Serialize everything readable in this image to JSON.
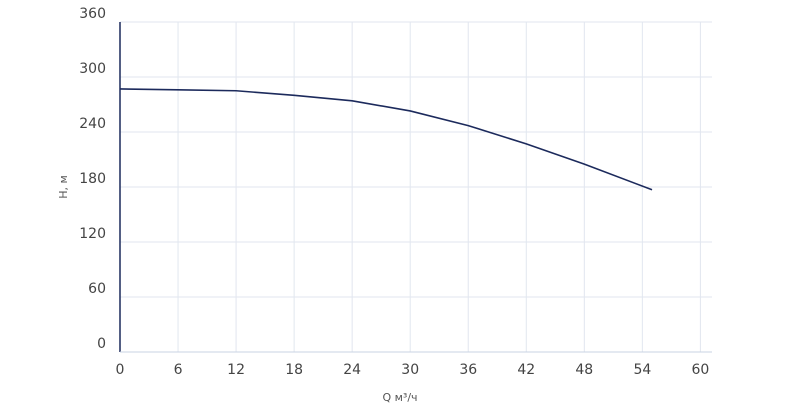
{
  "chart_data": {
    "type": "line",
    "x_label": "Q м³/ч",
    "y_label": "H, м",
    "x": [
      0,
      6,
      12,
      18,
      24,
      30,
      36,
      42,
      48,
      55
    ],
    "series": [
      {
        "name": "H",
        "color": "#1c2a5c",
        "values": [
          287,
          286,
          285,
          280,
          274,
          263,
          247,
          227,
          205,
          177
        ]
      }
    ],
    "xlim": [
      0,
      61.2
    ],
    "xticks": [
      0,
      6,
      12,
      18,
      24,
      30,
      36,
      42,
      48,
      54,
      60
    ],
    "ylim": [
      0,
      360
    ],
    "yticks": [
      0,
      60,
      120,
      180,
      240,
      300,
      360
    ],
    "grid": true
  }
}
